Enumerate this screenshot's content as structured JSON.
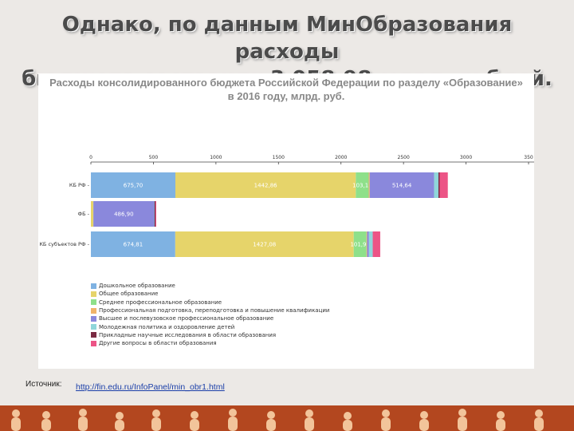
{
  "slide": {
    "title_line1": "Однако, по данным МинОбразования расходы",
    "title_line2": "бюджета составили  3 058,98 млрд. рублей."
  },
  "chart_data": {
    "type": "bar",
    "orientation": "horizontal",
    "stacked": true,
    "title_line1": "Расходы консолидированного бюджета Российской Федерации по разделу «Образование»",
    "title_line2": "в 2016 году, млрд. руб.",
    "xlim": [
      0,
      3500
    ],
    "x_ticks": [
      "0",
      "500",
      "1000",
      "1500",
      "2000",
      "2500",
      "3000",
      "350"
    ],
    "categories": [
      "КБ РФ",
      "ФБ",
      "КБ субъектов РФ"
    ],
    "category_labels": [
      "КБ РФ -",
      "ФБ -",
      "КБ субъектов РФ -"
    ],
    "series": [
      {
        "name": "Дошкольное образование",
        "color": "#7fb2e2",
        "values": [
          675.7,
          0,
          674.81
        ],
        "labels": [
          "675,70",
          "",
          "674,81"
        ]
      },
      {
        "name": "Общее образование",
        "color": "#e6d46a",
        "values": [
          1442.86,
          20,
          1427.08
        ],
        "labels": [
          "1442,86",
          "",
          "1427,08"
        ]
      },
      {
        "name": "Среднее профессиональное образование",
        "color": "#8ee08a",
        "values": [
          103.1,
          0,
          101.96
        ],
        "labels": [
          "103,10",
          "",
          "101,96"
        ]
      },
      {
        "name": "Профессиональная подготовка, переподготовка и повышение квалификации",
        "color": "#f0b46a",
        "values": [
          8,
          0,
          5
        ],
        "labels": [
          "",
          "",
          ""
        ]
      },
      {
        "name": "Высшее и послевузовское профессиональное образование",
        "color": "#8a88dc",
        "values": [
          514.64,
          486.9,
          15
        ],
        "labels": [
          "514,64",
          "486,90",
          ""
        ]
      },
      {
        "name": "Молодежная политика и оздоровление детей",
        "color": "#8fd6da",
        "values": [
          35,
          2,
          30
        ],
        "labels": [
          "",
          "",
          ""
        ]
      },
      {
        "name": "Прикладные научные исследования в области образования",
        "color": "#7a2a42",
        "values": [
          10,
          8,
          0
        ],
        "labels": [
          "",
          "",
          ""
        ]
      },
      {
        "name": "Другие вопросы в области образования",
        "color": "#ec5486",
        "values": [
          65,
          6,
          60
        ],
        "labels": [
          "",
          "",
          ""
        ]
      }
    ],
    "legend_position": "bottom-left",
    "grid": false
  },
  "source": {
    "label": "Источник:",
    "link_text": "http://fin.edu.ru/InfoPanel/min_obr1.html"
  }
}
